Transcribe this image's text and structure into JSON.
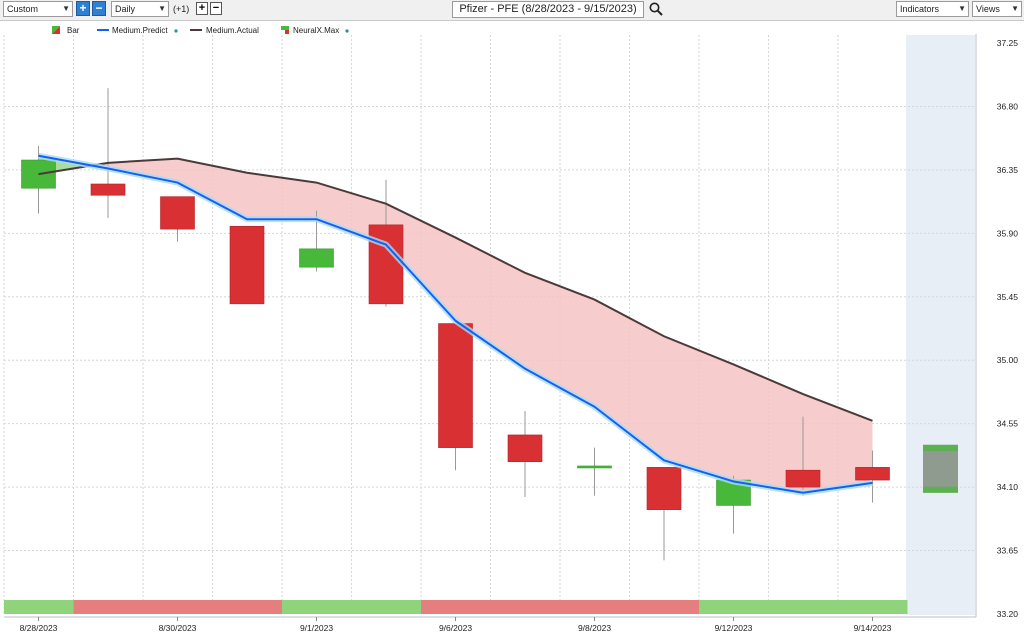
{
  "toolbar": {
    "range_select": "Custom",
    "period_select": "Daily",
    "offset_label": "(+1)",
    "title": "Pfizer - PFE (8/28/2023 - 9/15/2023)",
    "indicators_label": "Indicators",
    "views_label": "Views",
    "icons": [
      "plus-icon",
      "minus-icon",
      "search-icon",
      "chevron-down-icon"
    ]
  },
  "colors": {
    "up": "#47b83a",
    "down": "#d93034",
    "predict": "#1560f2",
    "actual": "#4a3a3a",
    "band_fill": "#f6c3c3",
    "band_fill_green": "#a8dda0",
    "strip_green": "#8fd47a",
    "strip_red": "#e57f7f",
    "forecast_bg": "#e8eef6",
    "forecast_bar": "#8f9b8f"
  },
  "chart_data": {
    "type": "candlestick",
    "ylim": [
      33.2,
      37.35
    ],
    "y_ticks": [
      "37.25",
      "36.80",
      "36.35",
      "35.90",
      "35.45",
      "35.00",
      "34.55",
      "34.10",
      "33.65",
      "33.20"
    ],
    "x_tick_labels": [
      "8/28/2023",
      "8/30/2023",
      "9/1/2023",
      "9/6/2023",
      "9/8/2023",
      "9/12/2023",
      "9/14/2023"
    ],
    "legend": [
      {
        "name": "Bar",
        "icon": "candle-swatch-icon"
      },
      {
        "name": "Medium.Predict",
        "icon": "blue-line-icon"
      },
      {
        "name": "Medium.Actual",
        "icon": "dark-line-icon"
      },
      {
        "name": "NeuralX.Max",
        "icon": "neuralx-swatch-icon"
      }
    ],
    "candles": [
      {
        "date": "8/28/2023",
        "open": 36.22,
        "high": 36.52,
        "low": 36.04,
        "close": 36.42
      },
      {
        "date": "8/29/2023",
        "open": 36.25,
        "high": 36.93,
        "low": 36.01,
        "close": 36.17
      },
      {
        "date": "8/30/2023",
        "open": 36.16,
        "high": 36.16,
        "low": 35.84,
        "close": 35.93
      },
      {
        "date": "8/31/2023",
        "open": 35.95,
        "high": 35.95,
        "low": 35.4,
        "close": 35.4
      },
      {
        "date": "9/1/2023",
        "open": 35.66,
        "high": 36.06,
        "low": 35.63,
        "close": 35.79
      },
      {
        "date": "9/5/2023",
        "open": 35.96,
        "high": 36.28,
        "low": 35.38,
        "close": 35.4
      },
      {
        "date": "9/6/2023",
        "open": 35.26,
        "high": 35.26,
        "low": 34.22,
        "close": 34.38
      },
      {
        "date": "9/7/2023",
        "open": 34.47,
        "high": 34.64,
        "low": 34.03,
        "close": 34.28
      },
      {
        "date": "9/8/2023",
        "open": 34.24,
        "high": 34.38,
        "low": 34.04,
        "close": 34.25
      },
      {
        "date": "9/11/2023",
        "open": 34.24,
        "high": 34.24,
        "low": 33.58,
        "close": 33.94
      },
      {
        "date": "9/12/2023",
        "open": 33.97,
        "high": 34.18,
        "low": 33.77,
        "close": 34.15
      },
      {
        "date": "9/13/2023",
        "open": 34.22,
        "high": 34.6,
        "low": 34.04,
        "close": 34.1
      },
      {
        "date": "9/14/2023",
        "open": 34.24,
        "high": 34.36,
        "low": 33.99,
        "close": 34.15
      }
    ],
    "medium_predict": [
      36.45,
      36.36,
      36.26,
      36.0,
      36.0,
      35.82,
      35.28,
      34.94,
      34.67,
      34.29,
      34.14,
      34.06,
      34.13
    ],
    "medium_actual": [
      36.32,
      36.4,
      36.43,
      36.33,
      36.26,
      36.11,
      35.87,
      35.62,
      35.43,
      35.17,
      34.97,
      34.76,
      34.57
    ],
    "forecast_bar": {
      "date": "9/15/2023",
      "high": 34.4,
      "low": 34.06
    },
    "signal_strip": [
      "green",
      "red",
      "red",
      "red",
      "green",
      "green",
      "red",
      "red",
      "red",
      "red",
      "green",
      "green",
      "green"
    ]
  }
}
